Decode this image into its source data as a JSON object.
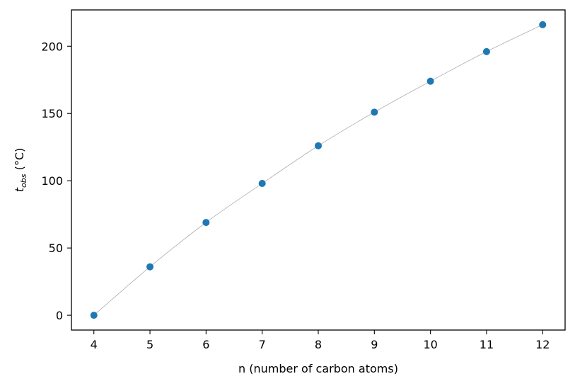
{
  "chart_data": {
    "type": "scatter",
    "title": "",
    "xlabel": "n (number of carbon atoms)",
    "ylabel": {
      "main": "t",
      "subscript": "obs",
      "unit": " (°C)"
    },
    "x_ticks": [
      4,
      5,
      6,
      7,
      8,
      9,
      10,
      11,
      12
    ],
    "y_ticks": [
      0,
      50,
      100,
      150,
      200
    ],
    "xlim": [
      3.6,
      12.4
    ],
    "ylim": [
      -11,
      227
    ],
    "grid": false,
    "legend": "none",
    "series": [
      {
        "x": [
          4,
          5,
          6,
          7,
          8,
          9,
          10,
          11,
          12
        ],
        "y": [
          0,
          36,
          69,
          98,
          126,
          151,
          174,
          196,
          216
        ],
        "marker_color": "#1f77b4",
        "fit_line_color": "#a0a0a0"
      }
    ]
  }
}
